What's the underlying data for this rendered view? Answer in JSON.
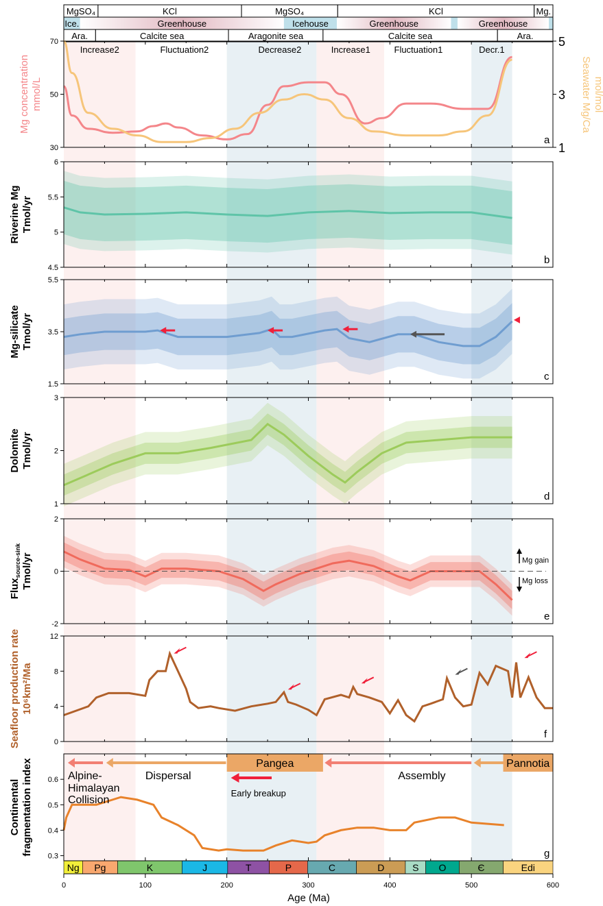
{
  "chart_data": {
    "type": "line",
    "xaxis": {
      "label": "Age (Ma)",
      "range": [
        0,
        600
      ],
      "ticks": [
        0,
        100,
        200,
        300,
        400,
        500,
        600
      ]
    },
    "shading": [
      {
        "from": 0,
        "to": 88,
        "color": "#fdf0ef"
      },
      {
        "from": 200,
        "to": 310,
        "color": "#e8f0f4"
      },
      {
        "from": 310,
        "to": 393,
        "color": "#fdf0ef"
      },
      {
        "from": 500,
        "to": 550,
        "color": "#e8f0f4"
      }
    ],
    "header_rows": [
      [
        {
          "t": "MgSO₄",
          "a": 0,
          "b": 42
        },
        {
          "t": "KCl",
          "a": 42,
          "b": 218
        },
        {
          "t": "MgSO₄",
          "a": 218,
          "b": 336
        },
        {
          "t": "KCl",
          "a": 336,
          "b": 577
        },
        {
          "t": "Mg.",
          "a": 577,
          "b": 600
        }
      ],
      [
        {
          "t": "Ice.",
          "a": 0,
          "b": 20,
          "c": "ice"
        },
        {
          "t": "Greenhouse",
          "a": 20,
          "b": 270,
          "c": "green"
        },
        {
          "t": "Icehouse",
          "a": 270,
          "b": 335,
          "c": "ice"
        },
        {
          "t": "Greenhouse",
          "a": 335,
          "b": 475,
          "c": "green"
        },
        {
          "t": "",
          "a": 475,
          "b": 483,
          "c": "ice"
        },
        {
          "t": "Greenhouse",
          "a": 483,
          "b": 595,
          "c": "green"
        },
        {
          "t": "",
          "a": 595,
          "b": 600,
          "c": "ice"
        }
      ],
      [
        {
          "t": "Ara.",
          "a": 0,
          "b": 39
        },
        {
          "t": "Calcite sea",
          "a": 39,
          "b": 202
        },
        {
          "t": "Aragonite sea",
          "a": 202,
          "b": 318
        },
        {
          "t": "Calcite sea",
          "a": 318,
          "b": 532
        },
        {
          "t": "Ara.",
          "a": 532,
          "b": 600
        }
      ]
    ],
    "phases": [
      {
        "t": "Increase2",
        "x": 44
      },
      {
        "t": "Fluctuation2",
        "x": 148
      },
      {
        "t": "Decrease2",
        "x": 265
      },
      {
        "t": "Increase1",
        "x": 352
      },
      {
        "t": "Fluctuation1",
        "x": 435
      },
      {
        "t": "Decr.1",
        "x": 525
      }
    ],
    "colors": {
      "mg": "#f4868a",
      "mgca": "#f6c57a",
      "riverine": "#5fc4a8",
      "silicate": "#6f9dd0",
      "dolomite": "#9ccb5b",
      "flux": "#f06a5c",
      "seafloor": "#b0602a",
      "frag": "#e8822a",
      "red_arrow": "#f0203a",
      "grey_arrow": "#555555"
    },
    "panels": [
      {
        "id": "a",
        "ylabel": "Mg concentration mmol/L",
        "ylabel_lines": [
          "Mg concentration",
          "mmol/L"
        ],
        "ylim": [
          30,
          70
        ],
        "yticks": [
          30,
          50,
          70
        ],
        "right_ylabel_lines": [
          "Seawater Mg/Ca",
          "mol/mol"
        ],
        "right_ylim": [
          1,
          5
        ],
        "right_yticks": [
          1,
          3,
          5
        ],
        "series": [
          {
            "name": "Mg concentration",
            "axis": "left",
            "color": "#f4868a",
            "x": [
              0,
              10,
              30,
              60,
              90,
              110,
              125,
              140,
              170,
              200,
              225,
              250,
              270,
              300,
              320,
              340,
              370,
              390,
              420,
              450,
              490,
              520,
              550
            ],
            "y": [
              53,
              42,
              37,
              35.5,
              36,
              38,
              39,
              37.5,
              34.5,
              33,
              35,
              46,
              53,
              54.5,
              54.5,
              50,
              39,
              41,
              46.5,
              46.5,
              44.5,
              44.5,
              64
            ]
          },
          {
            "name": "Seawater Mg/Ca",
            "axis": "right",
            "color": "#f6c57a",
            "x": [
              0,
              10,
              30,
              60,
              90,
              120,
              150,
              180,
              210,
              240,
              270,
              295,
              320,
              350,
              380,
              420,
              460,
              490,
              520,
              550
            ],
            "y": [
              5,
              3.8,
              2.3,
              1.7,
              1.45,
              1.2,
              1.2,
              1.35,
              1.7,
              2.3,
              2.8,
              3.0,
              2.8,
              2.1,
              1.6,
              1.45,
              1.45,
              1.6,
              2.2,
              4.3
            ]
          }
        ]
      },
      {
        "id": "b",
        "ylabel_lines": [
          "Riverine Mg",
          "Tmol/yr"
        ],
        "ylim": [
          4.5,
          6
        ],
        "yticks": [
          4.5,
          5,
          5.5,
          6
        ],
        "color": "#5fc4a8",
        "x": [
          0,
          20,
          50,
          100,
          150,
          200,
          250,
          300,
          350,
          400,
          450,
          500,
          550
        ],
        "mean": [
          5.35,
          5.28,
          5.25,
          5.26,
          5.28,
          5.25,
          5.23,
          5.28,
          5.3,
          5.27,
          5.28,
          5.28,
          5.2
        ],
        "inner": 0.38,
        "outer": 0.52
      },
      {
        "id": "c",
        "ylabel_lines": [
          "Mg-silicate",
          "Tmol/yr"
        ],
        "ylim": [
          1.5,
          5.5
        ],
        "yticks": [
          1.5,
          3.5,
          5.5
        ],
        "color": "#6f9dd0",
        "x": [
          0,
          20,
          50,
          100,
          115,
          125,
          140,
          200,
          240,
          255,
          265,
          280,
          320,
          335,
          350,
          375,
          410,
          430,
          460,
          490,
          510,
          530,
          550
        ],
        "mean": [
          3.3,
          3.4,
          3.5,
          3.5,
          3.55,
          3.45,
          3.3,
          3.3,
          3.45,
          3.6,
          3.3,
          3.3,
          3.55,
          3.6,
          3.25,
          3.1,
          3.4,
          3.4,
          3.1,
          2.95,
          2.95,
          3.3,
          3.9
        ],
        "inner": 0.7,
        "outer": 1.25,
        "arrows": [
          {
            "x": 118,
            "y": 3.55,
            "c": "red"
          },
          {
            "x": 250,
            "y": 3.55,
            "c": "red"
          },
          {
            "x": 342,
            "y": 3.6,
            "c": "red"
          },
          {
            "x": 425,
            "y": 3.4,
            "c": "grey",
            "len": 50
          },
          {
            "x": 552,
            "y": 3.95,
            "c": "red",
            "len": 8
          }
        ]
      },
      {
        "id": "d",
        "ylabel_lines": [
          "Dolomite",
          "Tmol/yr"
        ],
        "ylim": [
          1,
          3
        ],
        "yticks": [
          1,
          2,
          3
        ],
        "color": "#9ccb5b",
        "x": [
          0,
          30,
          60,
          100,
          140,
          180,
          230,
          250,
          270,
          300,
          330,
          345,
          360,
          390,
          420,
          460,
          500,
          550
        ],
        "mean": [
          1.35,
          1.55,
          1.75,
          1.95,
          1.95,
          2.05,
          2.2,
          2.5,
          2.3,
          1.9,
          1.55,
          1.4,
          1.6,
          1.95,
          2.15,
          2.2,
          2.25,
          2.25
        ],
        "inner": 0.2,
        "outer": 0.4
      },
      {
        "id": "e",
        "ylabel_lines": [
          "Flux",
          "Tmol/yr"
        ],
        "ylabel_sub": "source-sink",
        "ylim": [
          -2,
          2
        ],
        "yticks": [
          -2,
          0,
          2
        ],
        "color": "#f06a5c",
        "x": [
          0,
          20,
          50,
          80,
          100,
          120,
          150,
          190,
          220,
          245,
          260,
          290,
          330,
          350,
          380,
          410,
          425,
          450,
          480,
          510,
          530,
          550
        ],
        "mean": [
          0.75,
          0.45,
          0.1,
          0.05,
          -0.2,
          0.1,
          0.1,
          0,
          -0.3,
          -0.75,
          -0.5,
          -0.1,
          0.3,
          0.4,
          0.2,
          -0.2,
          -0.35,
          0,
          0,
          0,
          -0.5,
          -1.1
        ],
        "inner": 0.35,
        "outer": 0.6,
        "gain_label": "Mg gain",
        "loss_label": "Mg loss"
      },
      {
        "id": "f",
        "ylabel_lines": [
          "Seafloor production rate",
          "10⁶km²/Ma"
        ],
        "ylim": [
          0,
          12
        ],
        "yticks": [
          0,
          4,
          8,
          12
        ],
        "color": "#b0602a",
        "x": [
          0,
          15,
          30,
          40,
          55,
          65,
          80,
          100,
          105,
          115,
          125,
          130,
          140,
          150,
          155,
          165,
          180,
          190,
          210,
          230,
          250,
          260,
          270,
          275,
          285,
          300,
          310,
          320,
          340,
          350,
          355,
          360,
          375,
          390,
          400,
          410,
          420,
          430,
          440,
          450,
          465,
          470,
          480,
          490,
          500,
          510,
          520,
          530,
          545,
          550,
          555,
          560,
          570,
          580,
          590,
          600
        ],
        "y": [
          3,
          3.5,
          4,
          5,
          5.5,
          5.5,
          5.5,
          5.2,
          7,
          8,
          8,
          10,
          8,
          6,
          4.5,
          3.8,
          4,
          3.8,
          3.5,
          4,
          4.3,
          4.5,
          5.6,
          4.5,
          4.2,
          3.6,
          3,
          4.8,
          5.3,
          5,
          6.2,
          5.4,
          5,
          4.5,
          3.2,
          4.7,
          3,
          2.3,
          4,
          4.3,
          4.8,
          7.2,
          5,
          4,
          4.2,
          7.8,
          6.5,
          8.6,
          8,
          5,
          9,
          5,
          7.3,
          5,
          3.8,
          3.8
        ],
        "arrows": [
          {
            "x": 135,
            "y": 10,
            "c": "red"
          },
          {
            "x": 275,
            "y": 5.9,
            "c": "red"
          },
          {
            "x": 365,
            "y": 6.6,
            "c": "red"
          },
          {
            "x": 480,
            "y": 7.6,
            "c": "grey"
          },
          {
            "x": 565,
            "y": 9.5,
            "c": "red"
          }
        ]
      },
      {
        "id": "g",
        "ylabel_lines": [
          "Continental",
          "fragmentation index"
        ],
        "ylim": [
          0.28,
          0.7
        ],
        "yticks": [
          0.3,
          0.4,
          0.5,
          0.6
        ],
        "color": "#e8822a",
        "x": [
          0,
          3,
          10,
          20,
          40,
          70,
          90,
          110,
          120,
          140,
          160,
          170,
          190,
          200,
          220,
          245,
          260,
          280,
          300,
          310,
          320,
          340,
          360,
          380,
          400,
          420,
          430,
          460,
          480,
          500,
          540
        ],
        "y": [
          0.4,
          0.45,
          0.5,
          0.5,
          0.5,
          0.53,
          0.52,
          0.5,
          0.45,
          0.42,
          0.38,
          0.33,
          0.32,
          0.325,
          0.32,
          0.32,
          0.34,
          0.36,
          0.35,
          0.355,
          0.38,
          0.4,
          0.41,
          0.41,
          0.4,
          0.4,
          0.43,
          0.45,
          0.45,
          0.43,
          0.42
        ],
        "boxes": [
          {
            "t": "Pangea",
            "a": 200,
            "b": 318
          },
          {
            "t": "Pannotia",
            "a": 539,
            "b": 600
          }
        ],
        "labels": [
          {
            "t": "Alpine-",
            "x": 5,
            "r": 0
          },
          {
            "t": "Himalayan",
            "x": 5,
            "r": 1
          },
          {
            "t": "Collision",
            "x": 5,
            "r": 2
          },
          {
            "t": "Dispersal",
            "x": 100,
            "r": 0
          },
          {
            "t": "Assembly",
            "x": 410,
            "r": 0
          },
          {
            "t": "Early breakup",
            "x": 205,
            "r": 3
          }
        ]
      }
    ],
    "periods": [
      {
        "t": "Ng",
        "a": 0,
        "b": 23,
        "c": "#f2ef3a"
      },
      {
        "t": "Pg",
        "a": 23,
        "b": 66,
        "c": "#f9a86f"
      },
      {
        "t": "K",
        "a": 66,
        "b": 145,
        "c": "#7fc66c"
      },
      {
        "t": "J",
        "a": 145,
        "b": 201,
        "c": "#1bb8e6"
      },
      {
        "t": "T",
        "a": 201,
        "b": 252,
        "c": "#8e52a4"
      },
      {
        "t": "P",
        "a": 252,
        "b": 299,
        "c": "#e5684a"
      },
      {
        "t": "C",
        "a": 299,
        "b": 359,
        "c": "#67a9b0"
      },
      {
        "t": "D",
        "a": 359,
        "b": 419,
        "c": "#cb9c55"
      },
      {
        "t": "S",
        "a": 419,
        "b": 444,
        "c": "#a9dcc5"
      },
      {
        "t": "O",
        "a": 444,
        "b": 485,
        "c": "#00a88e"
      },
      {
        "t": "Є",
        "a": 485,
        "b": 539,
        "c": "#85a86f"
      },
      {
        "t": "Edi",
        "a": 539,
        "b": 600,
        "c": "#fad47f"
      }
    ]
  }
}
